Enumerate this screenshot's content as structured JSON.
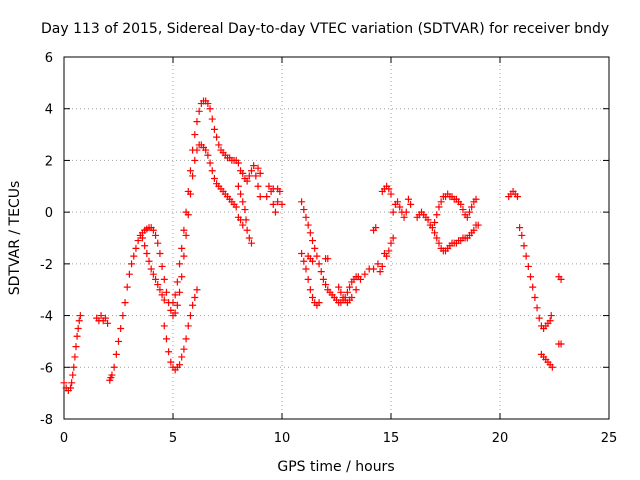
{
  "chart_data": {
    "type": "scatter",
    "title": "Day 113 of 2015, Sidereal Day-to-day VTEC variation (SDTVAR) for receiver bndy",
    "xlabel": "GPS time / hours",
    "ylabel": "SDTVAR / TECUs",
    "xlim": [
      0,
      25
    ],
    "ylim": [
      -8,
      6
    ],
    "x_ticks": [
      "0",
      "5",
      "10",
      "15",
      "20",
      "25"
    ],
    "y_ticks": [
      "-8",
      "-6",
      "-4",
      "-2",
      "0",
      "2",
      "4",
      "6"
    ],
    "grid": true,
    "marker": "+",
    "color": "#ff0000",
    "series": [
      {
        "points": [
          [
            0.0,
            -6.6
          ],
          [
            0.1,
            -6.8
          ],
          [
            0.2,
            -6.9
          ],
          [
            0.3,
            -6.8
          ],
          [
            0.35,
            -6.6
          ],
          [
            0.4,
            -6.3
          ],
          [
            0.45,
            -6.0
          ],
          [
            0.5,
            -5.6
          ],
          [
            0.55,
            -5.2
          ],
          [
            0.6,
            -4.8
          ],
          [
            0.65,
            -4.5
          ],
          [
            0.7,
            -4.2
          ],
          [
            0.75,
            -4.0
          ],
          [
            1.5,
            -4.1
          ],
          [
            1.6,
            -4.2
          ],
          [
            1.7,
            -4.0
          ],
          [
            1.8,
            -4.2
          ],
          [
            1.9,
            -4.1
          ],
          [
            2.0,
            -4.3
          ],
          [
            2.1,
            -6.5
          ],
          [
            2.15,
            -6.4
          ],
          [
            2.2,
            -6.3
          ],
          [
            2.3,
            -6.0
          ],
          [
            2.4,
            -5.5
          ],
          [
            2.5,
            -5.0
          ],
          [
            2.6,
            -4.5
          ],
          [
            2.7,
            -4.0
          ],
          [
            2.8,
            -3.5
          ],
          [
            2.9,
            -2.9
          ],
          [
            3.0,
            -2.4
          ],
          [
            3.1,
            -2.0
          ],
          [
            3.2,
            -1.7
          ],
          [
            3.3,
            -1.4
          ],
          [
            3.4,
            -1.1
          ],
          [
            3.5,
            -0.9
          ],
          [
            3.6,
            -0.8
          ],
          [
            3.7,
            -0.7
          ],
          [
            3.8,
            -0.65
          ],
          [
            3.9,
            -0.6
          ],
          [
            4.0,
            -0.6
          ],
          [
            4.1,
            -0.7
          ],
          [
            4.2,
            -0.9
          ],
          [
            4.3,
            -1.2
          ],
          [
            4.4,
            -1.6
          ],
          [
            4.5,
            -2.1
          ],
          [
            4.6,
            -2.6
          ],
          [
            4.7,
            -3.1
          ],
          [
            4.8,
            -3.5
          ],
          [
            4.9,
            -3.8
          ],
          [
            5.0,
            -4.0
          ],
          [
            5.1,
            -3.9
          ],
          [
            5.2,
            -3.6
          ],
          [
            5.3,
            -3.1
          ],
          [
            5.4,
            -2.5
          ],
          [
            5.5,
            -1.7
          ],
          [
            5.6,
            -0.9
          ],
          [
            5.7,
            -0.1
          ],
          [
            5.8,
            0.7
          ],
          [
            5.9,
            1.4
          ],
          [
            6.0,
            2.0
          ],
          [
            6.1,
            2.4
          ],
          [
            6.2,
            2.6
          ],
          [
            6.3,
            2.6
          ],
          [
            6.4,
            2.5
          ],
          [
            6.5,
            2.4
          ],
          [
            6.6,
            2.2
          ],
          [
            6.7,
            1.9
          ],
          [
            6.8,
            1.6
          ],
          [
            6.9,
            1.3
          ],
          [
            7.0,
            1.1
          ],
          [
            7.1,
            1.0
          ],
          [
            7.2,
            0.9
          ],
          [
            7.3,
            0.8
          ],
          [
            7.4,
            0.7
          ],
          [
            7.5,
            0.6
          ],
          [
            7.6,
            0.5
          ],
          [
            7.7,
            0.4
          ],
          [
            7.8,
            0.3
          ],
          [
            7.9,
            0.2
          ],
          [
            3.6,
            -1.0
          ],
          [
            3.7,
            -1.3
          ],
          [
            3.8,
            -1.6
          ],
          [
            3.9,
            -1.9
          ],
          [
            4.0,
            -2.2
          ],
          [
            4.1,
            -2.4
          ],
          [
            4.2,
            -2.6
          ],
          [
            4.3,
            -2.8
          ],
          [
            4.4,
            -3.0
          ],
          [
            4.5,
            -3.2
          ],
          [
            4.6,
            -3.4
          ],
          [
            4.6,
            -4.4
          ],
          [
            4.7,
            -4.9
          ],
          [
            4.8,
            -5.4
          ],
          [
            4.9,
            -5.8
          ],
          [
            5.0,
            -6.0
          ],
          [
            5.1,
            -6.1
          ],
          [
            5.2,
            -6.0
          ],
          [
            5.3,
            -5.9
          ],
          [
            5.4,
            -5.6
          ],
          [
            5.5,
            -5.3
          ],
          [
            5.6,
            -4.9
          ],
          [
            5.7,
            -4.4
          ],
          [
            5.8,
            -4.0
          ],
          [
            5.9,
            -3.6
          ],
          [
            6.0,
            -3.3
          ],
          [
            6.1,
            -3.0
          ],
          [
            5.0,
            -3.5
          ],
          [
            5.1,
            -3.2
          ],
          [
            5.2,
            -2.7
          ],
          [
            5.3,
            -2.0
          ],
          [
            5.4,
            -1.4
          ],
          [
            5.5,
            -0.7
          ],
          [
            5.6,
            0.0
          ],
          [
            5.7,
            0.8
          ],
          [
            5.8,
            1.6
          ],
          [
            5.9,
            2.4
          ],
          [
            6.0,
            3.0
          ],
          [
            6.1,
            3.5
          ],
          [
            6.2,
            3.9
          ],
          [
            6.3,
            4.2
          ],
          [
            6.4,
            4.3
          ],
          [
            6.5,
            4.3
          ],
          [
            6.6,
            4.2
          ],
          [
            6.7,
            4.0
          ],
          [
            6.8,
            3.6
          ],
          [
            6.9,
            3.2
          ],
          [
            7.0,
            2.9
          ],
          [
            7.1,
            2.6
          ],
          [
            7.2,
            2.4
          ],
          [
            7.3,
            2.3
          ],
          [
            7.4,
            2.2
          ],
          [
            7.5,
            2.1
          ],
          [
            7.6,
            2.1
          ],
          [
            7.7,
            2.0
          ],
          [
            7.8,
            2.0
          ],
          [
            7.9,
            2.0
          ],
          [
            8.0,
            1.9
          ],
          [
            8.0,
            1.0
          ],
          [
            8.1,
            0.7
          ],
          [
            8.2,
            0.4
          ],
          [
            8.3,
            0.1
          ],
          [
            8.35,
            -0.3
          ],
          [
            8.4,
            -0.7
          ],
          [
            8.5,
            -1.0
          ],
          [
            8.6,
            -1.2
          ],
          [
            8.0,
            -0.2
          ],
          [
            8.1,
            -0.3
          ],
          [
            8.2,
            -0.5
          ],
          [
            8.1,
            1.6
          ],
          [
            8.2,
            1.5
          ],
          [
            8.3,
            1.3
          ],
          [
            8.4,
            1.2
          ],
          [
            8.5,
            1.4
          ],
          [
            8.6,
            1.6
          ],
          [
            8.7,
            1.8
          ],
          [
            8.8,
            1.4
          ],
          [
            8.9,
            1.0
          ],
          [
            9.0,
            0.6
          ],
          [
            8.9,
            1.7
          ],
          [
            9.0,
            1.5
          ],
          [
            9.3,
            0.6
          ],
          [
            9.4,
            1.0
          ],
          [
            9.5,
            0.8
          ],
          [
            9.6,
            0.3
          ],
          [
            9.7,
            0.0
          ],
          [
            9.8,
            0.4
          ],
          [
            9.9,
            0.8
          ],
          [
            10.0,
            0.3
          ],
          [
            9.6,
            0.9
          ],
          [
            9.8,
            0.9
          ],
          [
            10.9,
            0.4
          ],
          [
            11.0,
            0.1
          ],
          [
            11.1,
            -0.2
          ],
          [
            11.2,
            -0.5
          ],
          [
            11.3,
            -0.8
          ],
          [
            11.4,
            -1.1
          ],
          [
            11.5,
            -1.4
          ],
          [
            11.6,
            -1.7
          ],
          [
            11.7,
            -2.0
          ],
          [
            11.8,
            -2.3
          ],
          [
            11.9,
            -2.6
          ],
          [
            12.0,
            -2.8
          ],
          [
            12.1,
            -3.0
          ],
          [
            12.2,
            -3.1
          ],
          [
            12.3,
            -3.2
          ],
          [
            12.4,
            -3.3
          ],
          [
            12.5,
            -3.4
          ],
          [
            12.6,
            -3.5
          ],
          [
            12.7,
            -3.5
          ],
          [
            12.8,
            -3.4
          ],
          [
            12.9,
            -3.3
          ],
          [
            13.0,
            -3.1
          ],
          [
            13.1,
            -2.9
          ],
          [
            13.2,
            -2.7
          ],
          [
            13.3,
            -2.6
          ],
          [
            13.4,
            -2.5
          ],
          [
            13.5,
            -2.5
          ],
          [
            10.9,
            -1.6
          ],
          [
            11.0,
            -1.9
          ],
          [
            11.1,
            -2.2
          ],
          [
            11.2,
            -2.6
          ],
          [
            11.3,
            -3.0
          ],
          [
            11.4,
            -3.3
          ],
          [
            11.5,
            -3.5
          ],
          [
            11.6,
            -3.6
          ],
          [
            11.7,
            -3.5
          ],
          [
            11.2,
            -1.7
          ],
          [
            11.3,
            -1.8
          ],
          [
            11.4,
            -1.9
          ],
          [
            12.0,
            -1.8
          ],
          [
            12.1,
            -1.8
          ],
          [
            12.6,
            -2.9
          ],
          [
            12.7,
            -3.1
          ],
          [
            12.8,
            -3.3
          ],
          [
            12.9,
            -3.4
          ],
          [
            13.0,
            -3.5
          ],
          [
            13.1,
            -3.4
          ],
          [
            13.2,
            -3.3
          ],
          [
            13.4,
            -3.0
          ],
          [
            13.6,
            -2.6
          ],
          [
            13.8,
            -2.4
          ],
          [
            14.0,
            -2.2
          ],
          [
            14.2,
            -2.2
          ],
          [
            14.4,
            -2.0
          ],
          [
            14.5,
            -2.3
          ],
          [
            14.6,
            -2.1
          ],
          [
            14.3,
            -0.6
          ],
          [
            14.2,
            -0.7
          ],
          [
            14.6,
            0.8
          ],
          [
            14.7,
            0.9
          ],
          [
            14.8,
            1.0
          ],
          [
            14.9,
            0.9
          ],
          [
            15.0,
            0.7
          ],
          [
            14.7,
            -1.6
          ],
          [
            14.8,
            -1.7
          ],
          [
            14.9,
            -1.5
          ],
          [
            15.0,
            -1.2
          ],
          [
            15.1,
            -1.0
          ],
          [
            15.1,
            0.0
          ],
          [
            15.2,
            0.3
          ],
          [
            15.3,
            0.4
          ],
          [
            15.4,
            0.2
          ],
          [
            15.5,
            0.0
          ],
          [
            15.6,
            -0.2
          ],
          [
            15.7,
            0.0
          ],
          [
            15.8,
            0.5
          ],
          [
            15.9,
            0.3
          ],
          [
            16.2,
            -0.2
          ],
          [
            16.3,
            -0.1
          ],
          [
            16.4,
            0.0
          ],
          [
            16.5,
            -0.1
          ],
          [
            16.6,
            -0.2
          ],
          [
            16.7,
            -0.3
          ],
          [
            16.8,
            -0.5
          ],
          [
            16.9,
            -0.6
          ],
          [
            17.0,
            -0.4
          ],
          [
            17.1,
            -0.1
          ],
          [
            17.2,
            0.2
          ],
          [
            17.3,
            0.4
          ],
          [
            17.4,
            0.6
          ],
          [
            17.5,
            0.6
          ],
          [
            17.6,
            0.7
          ],
          [
            17.7,
            0.6
          ],
          [
            17.8,
            0.6
          ],
          [
            17.9,
            0.5
          ],
          [
            18.0,
            0.5
          ],
          [
            18.1,
            0.4
          ],
          [
            18.2,
            0.3
          ],
          [
            18.3,
            0.1
          ],
          [
            18.4,
            -0.1
          ],
          [
            18.5,
            -0.2
          ],
          [
            18.6,
            0.0
          ],
          [
            18.7,
            0.2
          ],
          [
            18.8,
            0.4
          ],
          [
            18.9,
            0.5
          ],
          [
            17.0,
            -0.8
          ],
          [
            17.1,
            -1.0
          ],
          [
            17.2,
            -1.2
          ],
          [
            17.3,
            -1.4
          ],
          [
            17.4,
            -1.5
          ],
          [
            17.5,
            -1.5
          ],
          [
            17.6,
            -1.4
          ],
          [
            17.7,
            -1.3
          ],
          [
            17.8,
            -1.2
          ],
          [
            17.9,
            -1.2
          ],
          [
            18.0,
            -1.2
          ],
          [
            18.1,
            -1.1
          ],
          [
            18.2,
            -1.1
          ],
          [
            18.3,
            -1.0
          ],
          [
            18.4,
            -1.0
          ],
          [
            18.5,
            -1.0
          ],
          [
            18.6,
            -0.9
          ],
          [
            18.7,
            -0.8
          ],
          [
            18.8,
            -0.7
          ],
          [
            18.9,
            -0.5
          ],
          [
            19.0,
            -0.5
          ],
          [
            20.4,
            0.6
          ],
          [
            20.5,
            0.7
          ],
          [
            20.6,
            0.8
          ],
          [
            20.7,
            0.7
          ],
          [
            20.8,
            0.6
          ],
          [
            20.9,
            -0.6
          ],
          [
            21.0,
            -0.9
          ],
          [
            21.1,
            -1.3
          ],
          [
            21.2,
            -1.7
          ],
          [
            21.3,
            -2.1
          ],
          [
            21.4,
            -2.5
          ],
          [
            21.5,
            -2.9
          ],
          [
            21.6,
            -3.3
          ],
          [
            21.7,
            -3.7
          ],
          [
            21.8,
            -4.1
          ],
          [
            21.9,
            -4.4
          ],
          [
            22.0,
            -4.5
          ],
          [
            22.1,
            -4.4
          ],
          [
            22.2,
            -4.3
          ],
          [
            22.3,
            -4.2
          ],
          [
            22.35,
            -4.0
          ],
          [
            21.9,
            -5.5
          ],
          [
            22.0,
            -5.6
          ],
          [
            22.1,
            -5.7
          ],
          [
            22.2,
            -5.8
          ],
          [
            22.3,
            -5.9
          ],
          [
            22.4,
            -6.0
          ],
          [
            22.7,
            -5.1
          ],
          [
            22.8,
            -5.1
          ],
          [
            22.7,
            -2.5
          ],
          [
            22.8,
            -2.6
          ]
        ]
      }
    ]
  }
}
